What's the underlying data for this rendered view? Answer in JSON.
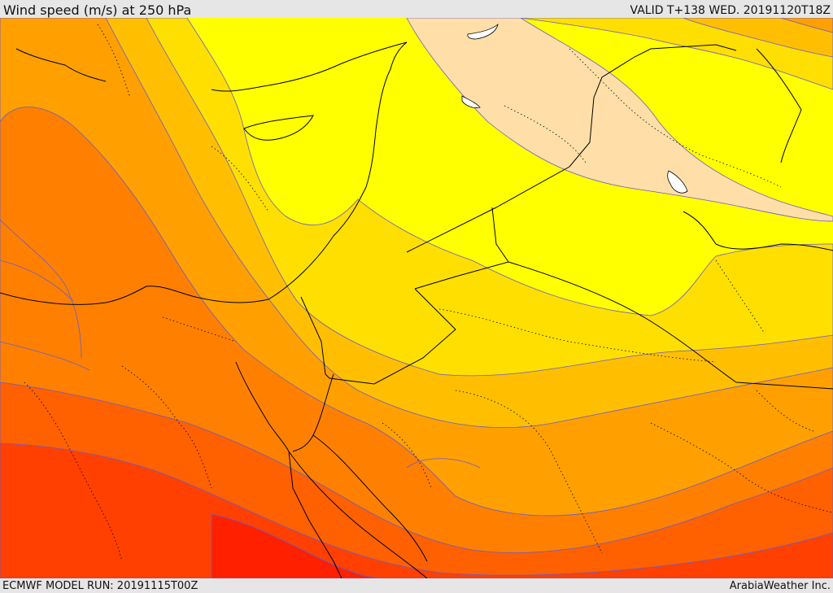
{
  "header": {
    "title": "Wind speed (m/s) at 250 hPa",
    "valid": "VALID T+138 WED. 20191120T18Z"
  },
  "footer": {
    "model_run": "ECMWF MODEL RUN: 20191115T00Z",
    "credit": "ArabiaWeather Inc."
  },
  "palette": {
    "band_peach": "#ffdfa7",
    "band_yellow": "#ffff00",
    "band_gold": "#ffdf00",
    "band_amber": "#ffbf00",
    "band_orange_light": "#ffa000",
    "band_orange": "#ff8000",
    "band_orange_red": "#ff6000",
    "band_red": "#ff4000",
    "band_deep_red": "#ff2000",
    "contour_line": "#6a5acd",
    "boundary_line": "#000000"
  }
}
